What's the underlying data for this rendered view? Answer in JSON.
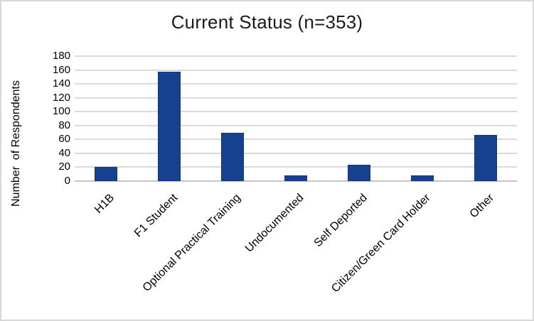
{
  "chart_data": {
    "type": "bar",
    "title": "Current Status (n=353)",
    "categories": [
      "H1B",
      "F1 Student",
      "Optional Practical Training",
      "Undocumented",
      "Self Deported",
      "Citizen/Green Card Holder",
      "Other"
    ],
    "values": [
      20,
      157,
      70,
      8,
      24,
      8,
      66
    ],
    "xlabel": "",
    "ylabel": "Number  of Respondents",
    "ylim": [
      0,
      180
    ],
    "ytick_step": 20,
    "yticks": [
      0,
      20,
      40,
      60,
      80,
      100,
      120,
      140,
      160,
      180
    ],
    "grid": "horizontal-only",
    "legend": "none",
    "x_label_rotation_deg": 45
  },
  "colors": {
    "bar_fill": "#16418e",
    "bar_border": "#0b2d6b",
    "gridline": "#d9d9d9",
    "axis_line": "#c6c6c6",
    "frame_border": "#d8d8d8",
    "title_text": "#1a1a1a",
    "label_text": "#000000",
    "background": "#ffffff"
  }
}
